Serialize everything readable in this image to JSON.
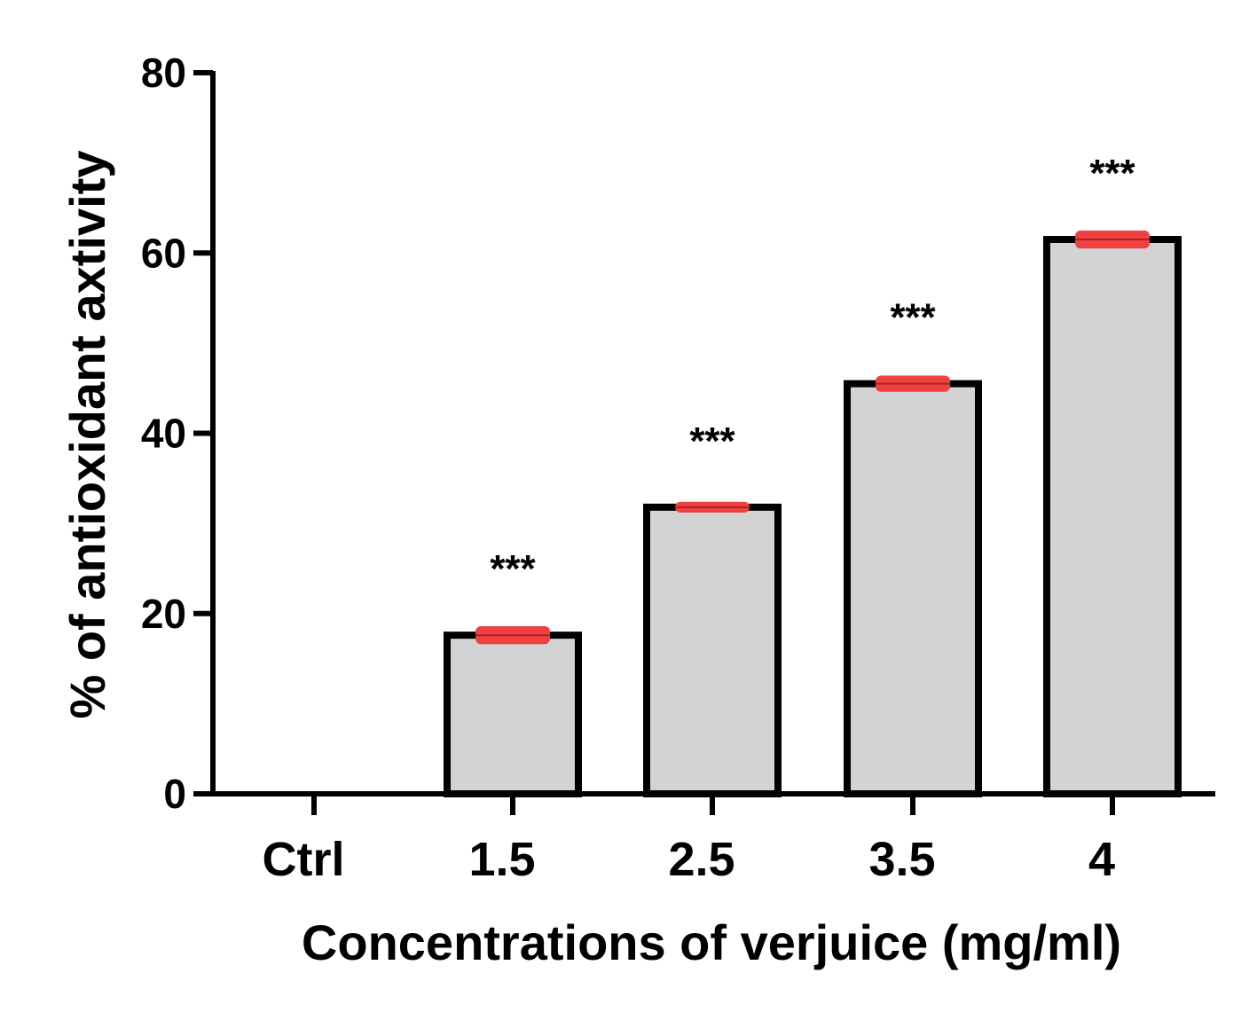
{
  "chart_data": {
    "type": "bar",
    "title": "",
    "xlabel": "Concentrations of verjuice (mg/ml)",
    "ylabel": "% of antioxidant axtivity",
    "categories": [
      "Ctrl",
      "1.5",
      "2.5",
      "3.5",
      "4"
    ],
    "series": [
      {
        "name": "% of antioxidant axtivity",
        "values": [
          0,
          17.6,
          31.8,
          45.5,
          61.5
        ],
        "errors": [
          0,
          1.0,
          0.6,
          0.9,
          1.0
        ]
      }
    ],
    "significance": [
      "",
      "***",
      "***",
      "***",
      "***"
    ],
    "ylim": [
      0,
      80
    ],
    "yticks": [
      0,
      20,
      40,
      60,
      80
    ],
    "grid": false,
    "colors": {
      "bar_fill": "#d3d3d3",
      "bar_stroke": "#000000",
      "error_bar": "#f04040",
      "axis": "#000000"
    }
  }
}
